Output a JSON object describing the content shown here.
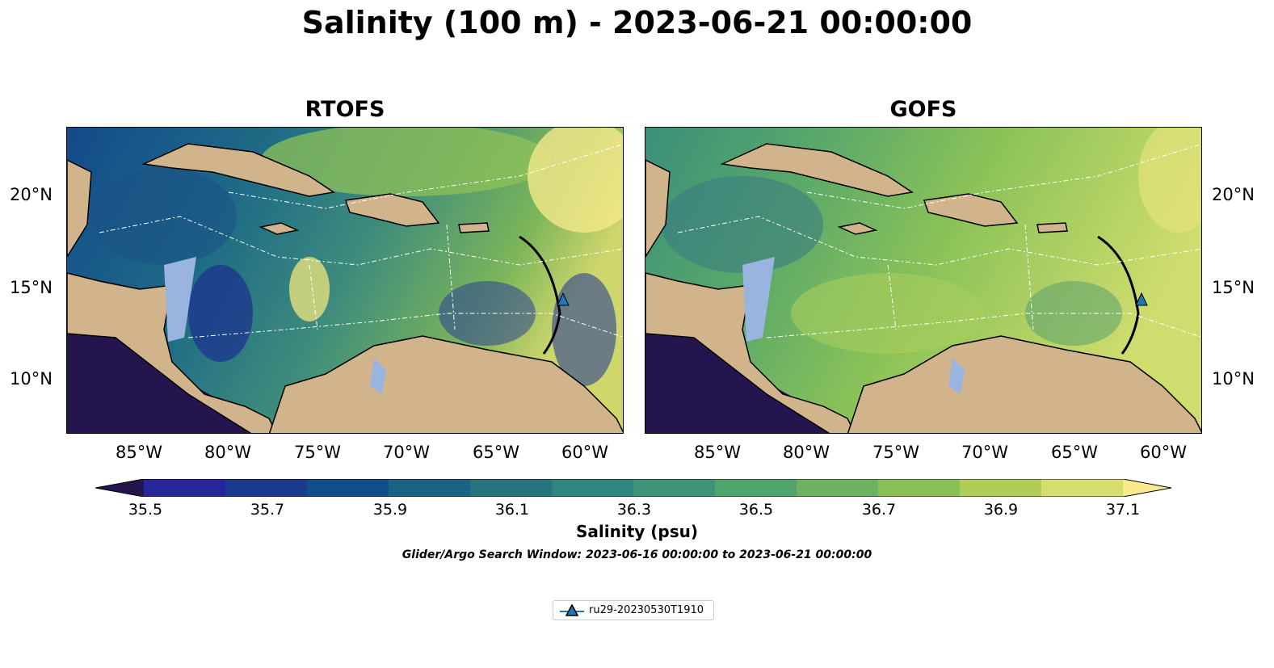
{
  "title": "Salinity (100 m) - 2023-06-21 00:00:00",
  "panels": [
    {
      "title": "RTOFS"
    },
    {
      "title": "GOFS"
    }
  ],
  "lon_ticks": [
    "85°W",
    "80°W",
    "75°W",
    "70°W",
    "65°W",
    "60°W"
  ],
  "lat_ticks": [
    "20°N",
    "15°N",
    "10°N"
  ],
  "colorbar": {
    "label": "Salinity (psu)",
    "ticks": [
      "35.5",
      "35.7",
      "35.9",
      "36.1",
      "36.3",
      "36.5",
      "36.7",
      "36.9",
      "37.1"
    ],
    "colors": [
      "#24154f",
      "#26269a",
      "#1b3a8f",
      "#124d8c",
      "#1a6183",
      "#27737f",
      "#2f8580",
      "#3e9478",
      "#52a46d",
      "#6db261",
      "#8bc056",
      "#b0cd5a",
      "#d6dd6e",
      "#f8ea8c"
    ]
  },
  "search_window": "Glider/Argo Search Window: 2023-06-16 00:00:00 to 2023-06-21 00:00:00",
  "legend": {
    "label": "ru29-20230530T1910",
    "marker_color": "#1f77b4"
  },
  "colors": {
    "land": "#d2b48c",
    "shelf": "#9ab4e0",
    "pacific": "#24154f"
  }
}
